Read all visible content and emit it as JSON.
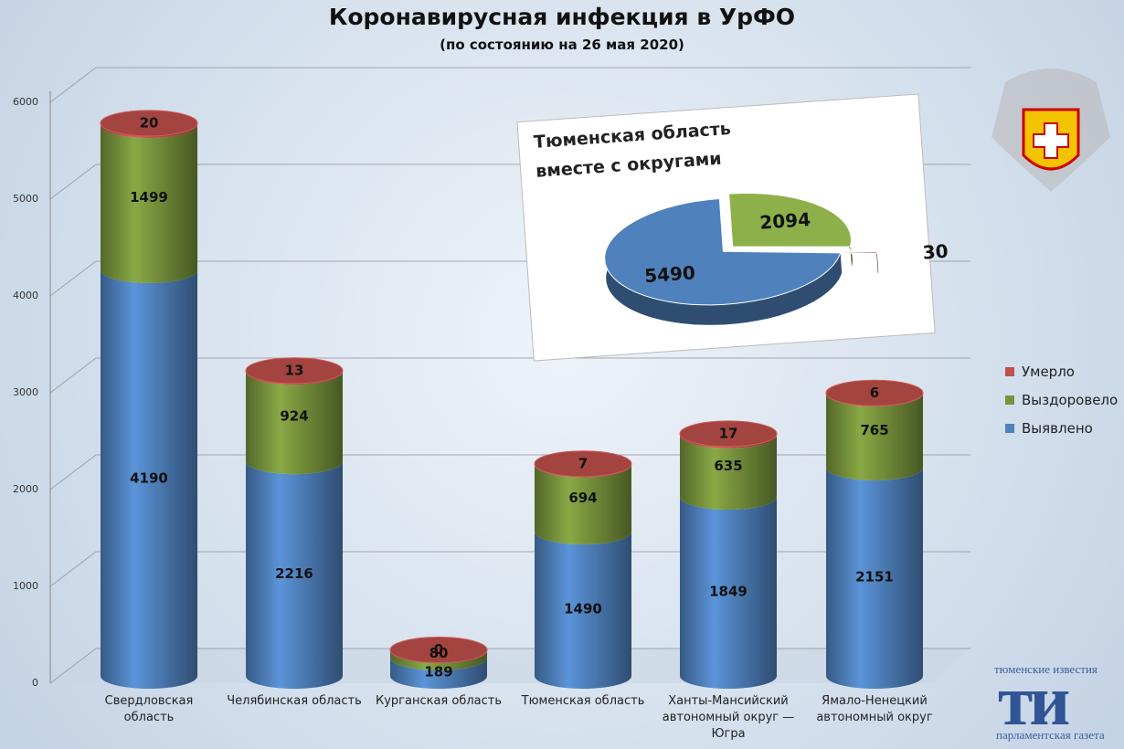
{
  "chart_data": [
    {
      "type": "bar",
      "stacked": true,
      "title": "Коронавирусная инфекция в УрФО",
      "subtitle": "(по состоянию на 26 мая 2020)",
      "categories": [
        "Свердловская область",
        "Челябинская область",
        "Курганская область",
        "Тюменская область",
        "Ханты-Мансийский автономный округ — Югра",
        "Ямало-Ненецкий автономный округ"
      ],
      "series": [
        {
          "name": "Выявлено",
          "color": "#4f81bd",
          "values": [
            4190,
            2216,
            189,
            1490,
            1849,
            2151
          ]
        },
        {
          "name": "Выздоровело",
          "color": "#77933c",
          "values": [
            1499,
            924,
            80,
            694,
            635,
            765
          ]
        },
        {
          "name": "Умерло",
          "color": "#c0504d",
          "values": [
            20,
            13,
            0,
            7,
            17,
            6
          ]
        }
      ],
      "ylim": [
        0,
        6000
      ],
      "yticks": [
        0,
        1000,
        2000,
        3000,
        4000,
        5000,
        6000
      ],
      "grid": true
    },
    {
      "type": "pie",
      "title": "Тюменская область вместе с округами",
      "values": [
        2094,
        30,
        5490
      ],
      "colors": [
        "#8db04a",
        "#6b2020",
        "#4f81bd"
      ]
    }
  ],
  "branding": {
    "top": "тюменские известия",
    "mark": "ти",
    "bottom": "парламентская газета"
  }
}
